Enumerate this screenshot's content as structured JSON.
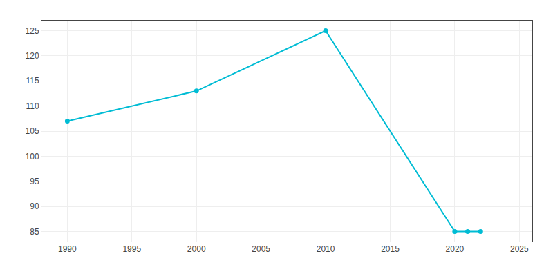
{
  "chart_data": {
    "type": "line",
    "x": [
      1990,
      2000,
      2010,
      2020,
      2021,
      2022
    ],
    "values": [
      107,
      113,
      125,
      85,
      85,
      85
    ],
    "color": "#00BCD4",
    "marker": "circle",
    "xlim": [
      1988,
      2026
    ],
    "ylim": [
      83,
      127
    ],
    "xticks": [
      1990,
      1995,
      2000,
      2005,
      2010,
      2015,
      2020,
      2025
    ],
    "yticks": [
      85,
      90,
      95,
      100,
      105,
      110,
      115,
      120,
      125
    ],
    "grid": true
  }
}
